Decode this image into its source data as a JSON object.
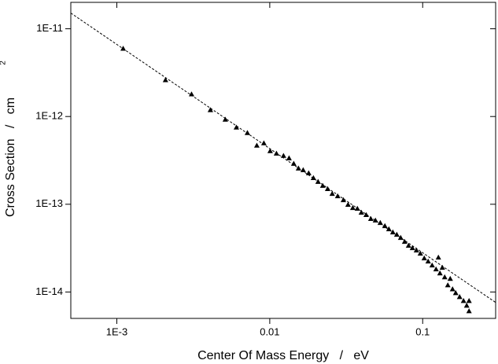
{
  "chart_data": {
    "type": "scatter",
    "x_label": "Center Of Mass Energy   /   eV",
    "y_label": "Cross Section   /   cm",
    "y_label_sup": "2",
    "xscale": "log",
    "yscale": "log",
    "xlim": [
      0.0005,
      0.3
    ],
    "ylim": [
      5e-15,
      2e-11
    ],
    "xticks": [
      {
        "value": 0.001,
        "label": "1E-3"
      },
      0.01,
      0.1
    ],
    "yticks": [
      {
        "value": 1e-14,
        "label": "1E-14"
      },
      {
        "value": 1e-13,
        "label": "1E-13"
      },
      {
        "value": 1e-12,
        "label": "1E-12"
      },
      {
        "value": 1e-11,
        "label": "1E-11"
      }
    ],
    "series": [
      {
        "marker": "triangle",
        "color": "#000000",
        "x": [
          0.0011,
          0.00208,
          0.00308,
          0.00409,
          0.00512,
          0.00605,
          0.00714,
          0.00823,
          0.00915,
          0.01006,
          0.01106,
          0.0123,
          0.01337,
          0.01435,
          0.01541,
          0.01654,
          0.01797,
          0.0193,
          0.0207,
          0.0222,
          0.0239,
          0.0256,
          0.0278,
          0.0303,
          0.0325,
          0.0349,
          0.0374,
          0.0397,
          0.0427,
          0.0458,
          0.0491,
          0.0528,
          0.0566,
          0.0601,
          0.0638,
          0.0677,
          0.0718,
          0.0762,
          0.0808,
          0.0857,
          0.091,
          0.0965,
          0.1024,
          0.1086,
          0.1153,
          0.1223,
          0.1267,
          0.1297,
          0.1344,
          0.1393,
          0.146,
          0.1514,
          0.1568,
          0.1644,
          0.1744,
          0.185,
          0.194,
          0.201,
          0.201
        ],
        "values": [
          5.96e-12,
          2.61e-12,
          1.8e-12,
          1.19e-12,
          9.26e-13,
          7.53e-13,
          6.52e-13,
          4.68e-13,
          4.98e-13,
          4.05e-13,
          3.8e-13,
          3.58e-13,
          3.36e-13,
          2.91e-13,
          2.57e-13,
          2.46e-13,
          2.27e-13,
          2e-13,
          1.81e-13,
          1.63e-13,
          1.5e-13,
          1.32e-13,
          1.24e-13,
          1.12e-13,
          9.92e-14,
          9.12e-14,
          8.94e-14,
          8.06e-14,
          7.58e-14,
          6.84e-14,
          6.56e-14,
          6.16e-14,
          5.67e-14,
          5.22e-14,
          4.81e-14,
          4.52e-14,
          4.16e-14,
          3.75e-14,
          3.38e-14,
          3.18e-14,
          2.99e-14,
          2.75e-14,
          2.43e-14,
          2.24e-14,
          2.02e-14,
          1.82e-14,
          2.48e-14,
          1.64e-14,
          1.9e-14,
          1.48e-14,
          1.2e-14,
          1.42e-14,
          1.08e-14,
          9.77e-15,
          8.81e-15,
          7.95e-15,
          7.02e-15,
          6.07e-15,
          7.95e-15
        ]
      }
    ],
    "fit": {
      "style": "dashed",
      "color": "#000000",
      "x": [
        0.0005,
        0.3
      ],
      "values": [
        1.51e-11,
        7.6e-15
      ]
    }
  }
}
